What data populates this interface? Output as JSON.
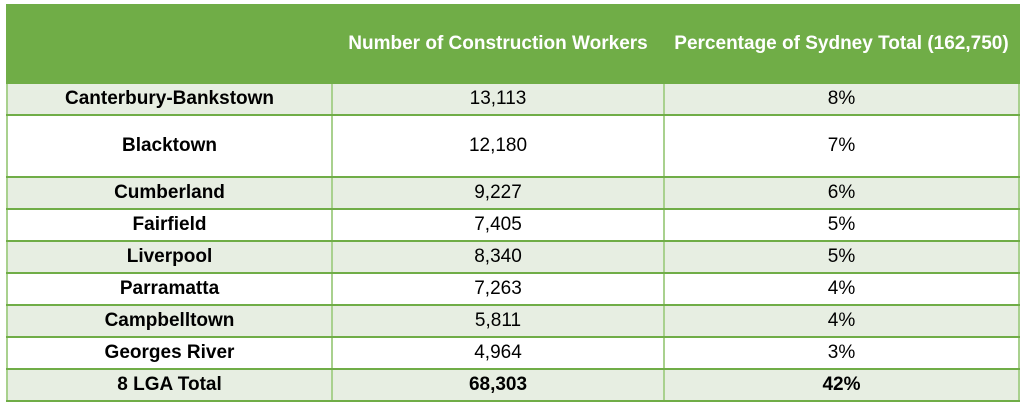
{
  "table": {
    "headers": [
      "",
      "Number of Construction Workers",
      "Percentage of Sydney Total (162,750)"
    ],
    "rows": [
      {
        "lga": "Canterbury-Bankstown",
        "workers": "13,113",
        "percent": "8%"
      },
      {
        "lga": "Blacktown",
        "workers": "12,180",
        "percent": "7%"
      },
      {
        "lga": "Cumberland",
        "workers": "9,227",
        "percent": "6%"
      },
      {
        "lga": "Fairfield",
        "workers": "7,405",
        "percent": "5%"
      },
      {
        "lga": "Liverpool",
        "workers": "8,340",
        "percent": "5%"
      },
      {
        "lga": "Parramatta",
        "workers": "7,263",
        "percent": "4%"
      },
      {
        "lga": "Campbelltown",
        "workers": "5,811",
        "percent": "4%"
      },
      {
        "lga": "Georges River",
        "workers": "4,964",
        "percent": "3%"
      }
    ],
    "total": {
      "lga": "8 LGA Total",
      "workers": "68,303",
      "percent": "42%"
    }
  }
}
